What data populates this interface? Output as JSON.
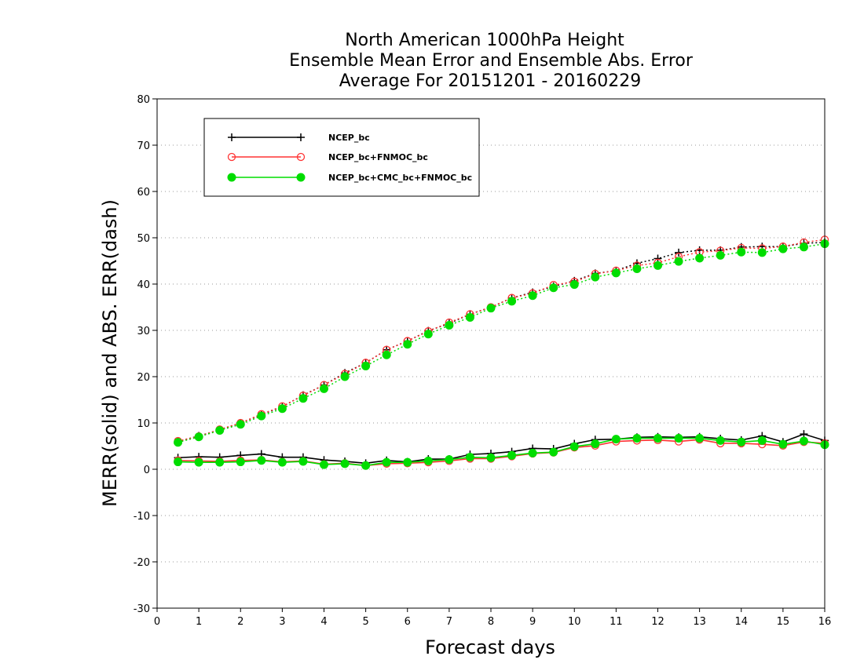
{
  "chart_data": {
    "type": "line",
    "title": [
      "North American 1000hPa Height",
      "Ensemble Mean Error and Ensemble Abs. Error",
      "Average For 20151201 - 20160229"
    ],
    "xlabel": "Forecast days",
    "ylabel": "MERR(solid) and ABS. ERR(dash)",
    "xlim": [
      0,
      16
    ],
    "ylim": [
      -30,
      80
    ],
    "xticks": [
      "0",
      "1",
      "2",
      "3",
      "4",
      "5",
      "6",
      "7",
      "8",
      "9",
      "10",
      "11",
      "12",
      "13",
      "14",
      "15",
      "16"
    ],
    "yticks": [
      "-30",
      "-20",
      "-10",
      "0",
      "10",
      "20",
      "30",
      "40",
      "50",
      "60",
      "70",
      "80"
    ],
    "grid": "horizontal dotted",
    "legend_position": "top-left",
    "x": [
      0.5,
      1,
      1.5,
      2,
      2.5,
      3,
      3.5,
      4,
      4.5,
      5,
      5.5,
      6,
      6.5,
      7,
      7.5,
      8,
      8.5,
      9,
      9.5,
      10,
      10.5,
      11,
      11.5,
      12,
      12.5,
      13,
      13.5,
      14,
      14.5,
      15,
      15.5,
      16
    ],
    "series": [
      {
        "name": "NCEP_bc",
        "color": "#000000",
        "marker": "plus",
        "merr": [
          2.5,
          2.7,
          2.6,
          3.0,
          3.3,
          2.6,
          2.6,
          2.0,
          1.7,
          1.3,
          1.9,
          1.6,
          2.2,
          2.2,
          3.2,
          3.4,
          3.8,
          4.5,
          4.4,
          5.5,
          6.4,
          6.5,
          6.9,
          7.0,
          6.9,
          7.0,
          6.6,
          6.3,
          7.2,
          5.9,
          7.6,
          6.2
        ],
        "abs_err": [
          6.0,
          7.2,
          8.5,
          10.0,
          11.8,
          13.5,
          16.0,
          18.2,
          20.8,
          23.0,
          25.8,
          27.7,
          29.9,
          31.5,
          33.5,
          35.0,
          37.0,
          38.2,
          39.5,
          40.7,
          42.3,
          42.9,
          44.5,
          45.5,
          46.8,
          47.3,
          47.3,
          48.0,
          48.1,
          48.1,
          48.8,
          49.0
        ]
      },
      {
        "name": "NCEP_bc+FNMOC_bc",
        "color": "#ff3333",
        "marker": "open-circle",
        "merr": [
          1.9,
          1.8,
          1.7,
          1.9,
          2.0,
          1.6,
          1.8,
          1.1,
          1.3,
          0.8,
          1.2,
          1.3,
          1.5,
          1.8,
          2.3,
          2.3,
          2.8,
          3.4,
          3.6,
          4.7,
          5.1,
          6.0,
          6.2,
          6.3,
          6.0,
          6.4,
          5.6,
          5.6,
          5.4,
          5.1,
          5.9,
          5.6
        ],
        "abs_err": [
          6.1,
          7.1,
          8.6,
          10.0,
          11.9,
          13.6,
          15.9,
          18.2,
          20.6,
          23.0,
          25.8,
          27.7,
          29.8,
          31.7,
          33.5,
          35.0,
          37.0,
          38.0,
          39.8,
          40.5,
          42.2,
          42.9,
          44.0,
          44.6,
          45.9,
          46.9,
          47.2,
          47.8,
          47.7,
          48.1,
          49.0,
          49.6
        ]
      },
      {
        "name": "NCEP_bc+CMC_bc+FNMOC_bc",
        "color": "#00dd00",
        "marker": "filled-circle",
        "merr": [
          1.6,
          1.5,
          1.5,
          1.6,
          1.9,
          1.5,
          1.7,
          1.0,
          1.2,
          0.8,
          1.5,
          1.5,
          1.8,
          2.1,
          2.6,
          2.5,
          3.0,
          3.5,
          3.7,
          4.9,
          5.5,
          6.5,
          6.7,
          6.7,
          6.7,
          6.7,
          6.2,
          5.9,
          6.2,
          5.4,
          6.1,
          5.3
        ],
        "abs_err": [
          5.8,
          7.0,
          8.4,
          9.7,
          11.5,
          13.1,
          15.3,
          17.4,
          20.0,
          22.3,
          24.7,
          27.0,
          29.2,
          31.1,
          32.8,
          34.8,
          36.3,
          37.5,
          39.2,
          39.9,
          41.5,
          42.4,
          43.3,
          44.0,
          44.9,
          45.6,
          46.2,
          46.9,
          46.8,
          47.6,
          48.0,
          48.7
        ]
      }
    ]
  }
}
